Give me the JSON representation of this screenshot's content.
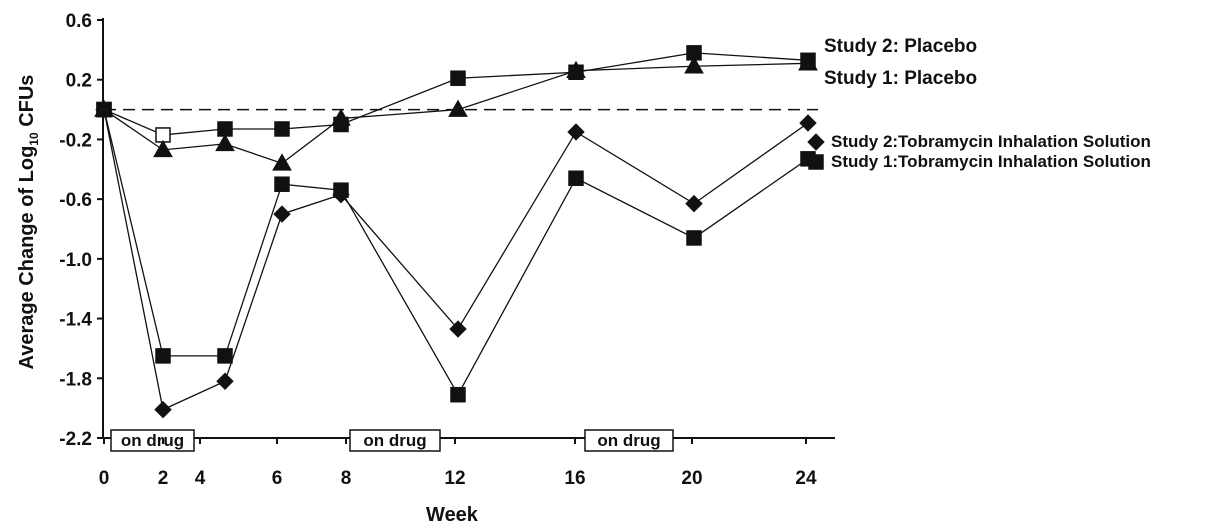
{
  "chart_data": {
    "type": "line",
    "xlabel": "Week",
    "ylabel_main": "Average Change of Log",
    "ylabel_sub": "10",
    "ylabel_tail": " CFUs",
    "x_ticks": [
      "0",
      "2",
      "4",
      "6",
      "8",
      "12",
      "16",
      "20",
      "24"
    ],
    "y_ticks": [
      "0.6",
      "0.2",
      "-0.2",
      "-0.6",
      "-1.0",
      "-1.4",
      "-1.8",
      "-2.2"
    ],
    "ylim": [
      -2.2,
      0.6
    ],
    "reference_line": 0,
    "drug_periods": [
      {
        "label": "on drug",
        "start_week": 0,
        "end_week": 4
      },
      {
        "label": "on drug",
        "start_week": 8,
        "end_week": 12
      },
      {
        "label": "on drug",
        "start_week": 16,
        "end_week": 20
      }
    ],
    "series": [
      {
        "name": "Study 2: Placebo",
        "marker": "square",
        "points": [
          {
            "week": 0,
            "value": 0.0
          },
          {
            "week": 2.5,
            "value": -0.17,
            "hollow": true
          },
          {
            "week": 4.5,
            "value": -0.13
          },
          {
            "week": 6.2,
            "value": -0.13
          },
          {
            "week": 8.4,
            "value": -0.1
          },
          {
            "week": 12.5,
            "value": 0.21
          },
          {
            "week": 16.5,
            "value": 0.25
          },
          {
            "week": 20.5,
            "value": 0.38
          },
          {
            "week": 24.5,
            "value": 0.33
          }
        ]
      },
      {
        "name": "Study 1: Placebo",
        "marker": "triangle",
        "points": [
          {
            "week": 0,
            "value": 0.0
          },
          {
            "week": 2.5,
            "value": -0.27
          },
          {
            "week": 4.5,
            "value": -0.23
          },
          {
            "week": 6.2,
            "value": -0.36
          },
          {
            "week": 8.4,
            "value": -0.06
          },
          {
            "week": 12.5,
            "value": 0.0
          },
          {
            "week": 16.5,
            "value": 0.26
          },
          {
            "week": 20.5,
            "value": 0.29
          },
          {
            "week": 24.5,
            "value": 0.31
          }
        ]
      },
      {
        "name": "Study 2:Tobramycin Inhalation Solution",
        "marker": "diamond",
        "points": [
          {
            "week": 0,
            "value": 0.0
          },
          {
            "week": 2.5,
            "value": -2.01
          },
          {
            "week": 4.5,
            "value": -1.82
          },
          {
            "week": 6.2,
            "value": -0.7
          },
          {
            "week": 8.4,
            "value": -0.57
          },
          {
            "week": 12.5,
            "value": -1.47
          },
          {
            "week": 16.5,
            "value": -0.15
          },
          {
            "week": 20.5,
            "value": -0.63
          },
          {
            "week": 24.5,
            "value": -0.09
          }
        ]
      },
      {
        "name": "Study 1:Tobramycin Inhalation Solution",
        "marker": "square",
        "points": [
          {
            "week": 0,
            "value": 0.0
          },
          {
            "week": 2.5,
            "value": -1.65
          },
          {
            "week": 4.5,
            "value": -1.65
          },
          {
            "week": 6.2,
            "value": -0.5
          },
          {
            "week": 8.4,
            "value": -0.54
          },
          {
            "week": 12.5,
            "value": -1.91
          },
          {
            "week": 16.5,
            "value": -0.46
          },
          {
            "week": 20.5,
            "value": -0.86
          },
          {
            "week": 24.5,
            "value": -0.33
          }
        ]
      }
    ]
  }
}
